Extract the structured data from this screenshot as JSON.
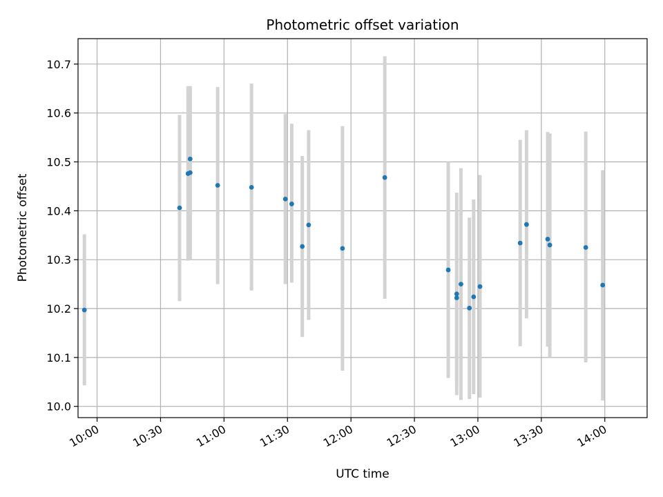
{
  "chart_data": {
    "type": "scatter",
    "title": "Photometric offset variation",
    "xlabel": "UTC time",
    "ylabel": "Photometric offset",
    "x_unit": "HH:MM UTC",
    "xlim": [
      "09:51",
      "14:20"
    ],
    "ylim": [
      9.977,
      10.752
    ],
    "x_ticks": [
      "10:00",
      "10:30",
      "11:00",
      "11:30",
      "12:00",
      "12:30",
      "13:00",
      "13:30",
      "14:00"
    ],
    "y_ticks": [
      "10.0",
      "10.1",
      "10.2",
      "10.3",
      "10.4",
      "10.5",
      "10.6",
      "10.7"
    ],
    "grid": true,
    "point_color": "#1f77b4",
    "error_bar_color": "#d3d3d3",
    "points": [
      {
        "x": "09:54",
        "y": 10.197,
        "lo": 10.043,
        "hi": 10.352
      },
      {
        "x": "10:39",
        "y": 10.406,
        "lo": 10.215,
        "hi": 10.596
      },
      {
        "x": "10:43",
        "y": 10.476,
        "lo": 10.298,
        "hi": 10.655
      },
      {
        "x": "10:44",
        "y": 10.506,
        "lo": 10.3,
        "hi": 10.655
      },
      {
        "x": "10:44",
        "y": 10.478,
        "lo": 10.312,
        "hi": 10.645
      },
      {
        "x": "10:57",
        "y": 10.452,
        "lo": 10.25,
        "hi": 10.653
      },
      {
        "x": "11:13",
        "y": 10.448,
        "lo": 10.237,
        "hi": 10.66
      },
      {
        "x": "11:29",
        "y": 10.424,
        "lo": 10.25,
        "hi": 10.598
      },
      {
        "x": "11:32",
        "y": 10.414,
        "lo": 10.253,
        "hi": 10.578
      },
      {
        "x": "11:37",
        "y": 10.327,
        "lo": 10.142,
        "hi": 10.512
      },
      {
        "x": "11:40",
        "y": 10.371,
        "lo": 10.177,
        "hi": 10.565
      },
      {
        "x": "11:56",
        "y": 10.323,
        "lo": 10.073,
        "hi": 10.573
      },
      {
        "x": "12:16",
        "y": 10.468,
        "lo": 10.22,
        "hi": 10.716
      },
      {
        "x": "12:46",
        "y": 10.279,
        "lo": 10.058,
        "hi": 10.5
      },
      {
        "x": "12:50",
        "y": 10.23,
        "lo": 10.023,
        "hi": 10.437
      },
      {
        "x": "12:50",
        "y": 10.222,
        "lo": 10.05,
        "hi": 10.395
      },
      {
        "x": "12:52",
        "y": 10.25,
        "lo": 10.013,
        "hi": 10.487
      },
      {
        "x": "12:56",
        "y": 10.201,
        "lo": 10.015,
        "hi": 10.386
      },
      {
        "x": "12:58",
        "y": 10.224,
        "lo": 10.025,
        "hi": 10.423
      },
      {
        "x": "13:01",
        "y": 10.245,
        "lo": 10.018,
        "hi": 10.473
      },
      {
        "x": "13:20",
        "y": 10.334,
        "lo": 10.123,
        "hi": 10.545
      },
      {
        "x": "13:23",
        "y": 10.372,
        "lo": 10.18,
        "hi": 10.565
      },
      {
        "x": "13:33",
        "y": 10.342,
        "lo": 10.122,
        "hi": 10.561
      },
      {
        "x": "13:34",
        "y": 10.33,
        "lo": 10.1,
        "hi": 10.558
      },
      {
        "x": "13:51",
        "y": 10.325,
        "lo": 10.09,
        "hi": 10.562
      },
      {
        "x": "13:59",
        "y": 10.248,
        "lo": 10.012,
        "hi": 10.483
      }
    ]
  }
}
